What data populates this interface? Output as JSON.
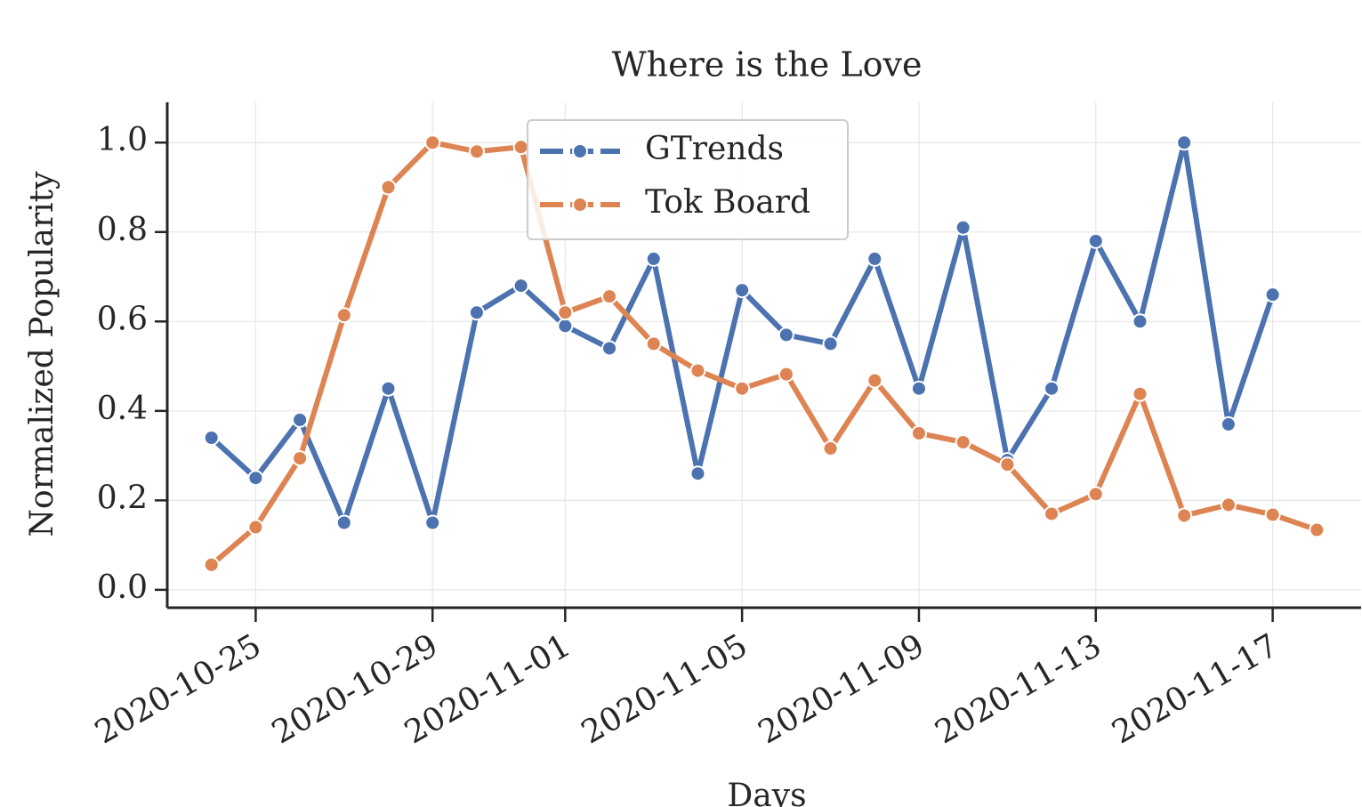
{
  "chart_data": {
    "type": "line",
    "title": "Where is the Love",
    "xlabel": "Days",
    "ylabel": "Normalized Popularity",
    "x": [
      "2020-10-24",
      "2020-10-25",
      "2020-10-26",
      "2020-10-27",
      "2020-10-28",
      "2020-10-29",
      "2020-10-30",
      "2020-10-31",
      "2020-11-01",
      "2020-11-02",
      "2020-11-03",
      "2020-11-04",
      "2020-11-05",
      "2020-11-06",
      "2020-11-07",
      "2020-11-08",
      "2020-11-09",
      "2020-11-10",
      "2020-11-11",
      "2020-11-12",
      "2020-11-13",
      "2020-11-14",
      "2020-11-15",
      "2020-11-16",
      "2020-11-17",
      "2020-11-18"
    ],
    "series": [
      {
        "name": "GTrends",
        "color": "#4c72b0",
        "values": [
          0.34,
          0.25,
          0.38,
          0.15,
          0.45,
          0.15,
          0.62,
          0.68,
          0.59,
          0.54,
          0.74,
          0.26,
          0.67,
          0.57,
          0.55,
          0.74,
          0.45,
          0.81,
          0.29,
          0.45,
          0.78,
          0.6,
          1.0,
          0.37,
          0.66,
          null
        ]
      },
      {
        "name": "Tok Board",
        "color": "#dd8452",
        "values": [
          0.056,
          0.14,
          0.294,
          0.614,
          0.9,
          1.0,
          0.98,
          0.99,
          0.62,
          0.656,
          0.55,
          0.49,
          0.45,
          0.482,
          0.316,
          0.468,
          0.35,
          0.33,
          0.28,
          0.17,
          0.214,
          0.438,
          0.166,
          0.19,
          0.168,
          0.134
        ]
      }
    ],
    "xlim": [
      "2020-10-23",
      "2020-11-19"
    ],
    "xticks": [
      "2020-10-25",
      "2020-10-29",
      "2020-11-01",
      "2020-11-05",
      "2020-11-09",
      "2020-11-13",
      "2020-11-17"
    ],
    "ylim": [
      -0.04,
      1.09
    ],
    "yticks": [
      {
        "value": 0,
        "label": "0.0"
      },
      0.2,
      0.4,
      0.6,
      0.8,
      {
        "value": 1,
        "label": "1.0"
      }
    ],
    "grid": true,
    "legend": "upper center"
  }
}
